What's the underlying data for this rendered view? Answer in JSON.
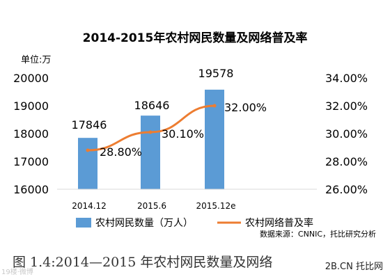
{
  "chart_data": {
    "type": "bar",
    "title": "2014-2015年农村网民数量及网络普及率",
    "unit_label": "单位:万",
    "categories": [
      "2014.12",
      "2015.6",
      "2015.12e"
    ],
    "series": [
      {
        "name": "农村网民数量（万人）",
        "kind": "bar",
        "axis": "left",
        "values": [
          17846,
          18646,
          19578
        ],
        "labels": [
          "17846",
          "18646",
          "19578"
        ]
      },
      {
        "name": "农村网络普及率",
        "kind": "line",
        "axis": "right",
        "values": [
          28.8,
          30.1,
          32.0
        ],
        "labels": [
          "28.80%",
          "30.10%",
          "32.00%"
        ]
      }
    ],
    "y_left": {
      "min": 16000,
      "max": 20000,
      "ticks": [
        "16000",
        "17000",
        "18000",
        "19000",
        "20000"
      ],
      "tick_values": [
        16000,
        17000,
        18000,
        19000,
        20000
      ]
    },
    "y_right": {
      "min": 26,
      "max": 34,
      "ticks": [
        "26.00%",
        "28.00%",
        "30.00%",
        "32.00%",
        "34.00%"
      ],
      "tick_values": [
        26,
        28,
        30,
        32,
        34
      ]
    },
    "grid": false,
    "legend_placement": "bottom",
    "source": "数据来源：CNNIC，托比研究分析",
    "colors": {
      "bar": "#5b9bd5",
      "line": "#ed7d31",
      "text": "#000000"
    }
  },
  "caption": "图 1.4:2014—2015 年农村网民数量及网络",
  "watermark_left": "19楼·微博",
  "watermark_right": "2B.CN 托比网"
}
